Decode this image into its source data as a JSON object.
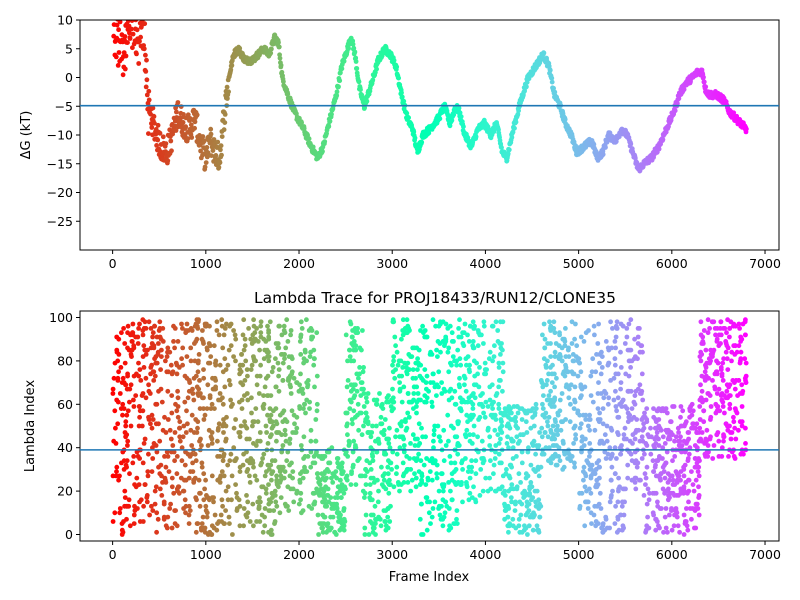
{
  "chart_data": [
    {
      "type": "scatter",
      "title": "",
      "xlabel": "",
      "ylabel": "ΔG (kT)",
      "xlim": [
        -350,
        7150
      ],
      "ylim": [
        -30,
        10
      ],
      "x_ticks": [
        0,
        1000,
        2000,
        3000,
        4000,
        5000,
        6000,
        7000
      ],
      "y_ticks": [
        -25,
        -20,
        -15,
        -10,
        -5,
        0,
        5,
        10
      ],
      "hline": -4.9,
      "hline_color": "#1f77b4",
      "colormap": "rainbow",
      "frame_range": [
        0,
        6800
      ],
      "trace_keypoints": [
        [
          0,
          10
        ],
        [
          20,
          8
        ],
        [
          60,
          6
        ],
        [
          90,
          9
        ],
        [
          120,
          4
        ],
        [
          160,
          8
        ],
        [
          220,
          9
        ],
        [
          280,
          7
        ],
        [
          340,
          8
        ],
        [
          380,
          -5
        ],
        [
          420,
          -7
        ],
        [
          470,
          -10
        ],
        [
          520,
          -12
        ],
        [
          580,
          -13
        ],
        [
          640,
          -10
        ],
        [
          700,
          -6
        ],
        [
          760,
          -8
        ],
        [
          820,
          -9
        ],
        [
          880,
          -7
        ],
        [
          950,
          -12
        ],
        [
          1000,
          -14
        ],
        [
          1050,
          -11
        ],
        [
          1100,
          -13
        ],
        [
          1150,
          -14
        ],
        [
          1200,
          -6
        ],
        [
          1260,
          1
        ],
        [
          1300,
          4
        ],
        [
          1350,
          5
        ],
        [
          1420,
          3
        ],
        [
          1500,
          3
        ],
        [
          1560,
          4
        ],
        [
          1620,
          5
        ],
        [
          1680,
          4
        ],
        [
          1740,
          7
        ],
        [
          1780,
          6
        ],
        [
          1820,
          0
        ],
        [
          1880,
          -3
        ],
        [
          1950,
          -6
        ],
        [
          2050,
          -9
        ],
        [
          2130,
          -12
        ],
        [
          2200,
          -14
        ],
        [
          2260,
          -12
        ],
        [
          2320,
          -8
        ],
        [
          2400,
          -3
        ],
        [
          2460,
          2
        ],
        [
          2520,
          5
        ],
        [
          2560,
          7
        ],
        [
          2600,
          4
        ],
        [
          2650,
          -2
        ],
        [
          2700,
          -5
        ],
        [
          2780,
          -1
        ],
        [
          2850,
          3
        ],
        [
          2920,
          5
        ],
        [
          2980,
          4
        ],
        [
          3040,
          2
        ],
        [
          3100,
          -3
        ],
        [
          3160,
          -7
        ],
        [
          3220,
          -9
        ],
        [
          3270,
          -13
        ],
        [
          3330,
          -10
        ],
        [
          3400,
          -9
        ],
        [
          3500,
          -7
        ],
        [
          3560,
          -5
        ],
        [
          3620,
          -8
        ],
        [
          3680,
          -5
        ],
        [
          3720,
          -6
        ],
        [
          3780,
          -10
        ],
        [
          3850,
          -12
        ],
        [
          3920,
          -9
        ],
        [
          3990,
          -8
        ],
        [
          4060,
          -10
        ],
        [
          4120,
          -8
        ],
        [
          4180,
          -13
        ],
        [
          4230,
          -14
        ],
        [
          4300,
          -9
        ],
        [
          4380,
          -4
        ],
        [
          4460,
          0
        ],
        [
          4540,
          2
        ],
        [
          4620,
          4
        ],
        [
          4680,
          2
        ],
        [
          4740,
          -3
        ],
        [
          4800,
          -5
        ],
        [
          4860,
          -8
        ],
        [
          4920,
          -10
        ],
        [
          4980,
          -13
        ],
        [
          5060,
          -12
        ],
        [
          5140,
          -11
        ],
        [
          5200,
          -14
        ],
        [
          5260,
          -13
        ],
        [
          5320,
          -10
        ],
        [
          5400,
          -11
        ],
        [
          5460,
          -9
        ],
        [
          5520,
          -10
        ],
        [
          5580,
          -13
        ],
        [
          5640,
          -16
        ],
        [
          5700,
          -15
        ],
        [
          5780,
          -14
        ],
        [
          5860,
          -12
        ],
        [
          5940,
          -9
        ],
        [
          6020,
          -6
        ],
        [
          6080,
          -3
        ],
        [
          6150,
          -1
        ],
        [
          6220,
          0
        ],
        [
          6280,
          1
        ],
        [
          6330,
          1
        ],
        [
          6360,
          -2
        ],
        [
          6400,
          -3
        ],
        [
          6480,
          -3
        ],
        [
          6560,
          -4
        ],
        [
          6620,
          -6
        ],
        [
          6680,
          -7
        ],
        [
          6740,
          -8
        ],
        [
          6800,
          -9
        ]
      ]
    },
    {
      "type": "scatter",
      "title": "Lambda Trace for PROJ18433/RUN12/CLONE35",
      "xlabel": "Frame Index",
      "ylabel": "Lambda Index",
      "xlim": [
        -350,
        7150
      ],
      "ylim": [
        -3,
        103
      ],
      "x_ticks": [
        0,
        1000,
        2000,
        3000,
        4000,
        5000,
        6000,
        7000
      ],
      "y_ticks": [
        0,
        20,
        40,
        60,
        80,
        100
      ],
      "hline": 39,
      "hline_color": "#1f77b4",
      "colormap": "rainbow",
      "frame_range": [
        0,
        6800
      ],
      "lambda_range": [
        0,
        99
      ],
      "segments": [
        {
          "x": [
            0,
            1750
          ],
          "y": [
            0,
            99
          ]
        },
        {
          "x": [
            1750,
            2200
          ],
          "y": [
            10,
            99
          ]
        },
        {
          "x": [
            2200,
            2500
          ],
          "y": [
            0,
            40
          ]
        },
        {
          "x": [
            2500,
            2700
          ],
          "y": [
            20,
            99
          ]
        },
        {
          "x": [
            2700,
            3000
          ],
          "y": [
            0,
            65
          ]
        },
        {
          "x": [
            3000,
            3300
          ],
          "y": [
            20,
            99
          ]
        },
        {
          "x": [
            3300,
            3700
          ],
          "y": [
            0,
            99
          ]
        },
        {
          "x": [
            3700,
            4200
          ],
          "y": [
            15,
            99
          ]
        },
        {
          "x": [
            4200,
            4600
          ],
          "y": [
            0,
            60
          ]
        },
        {
          "x": [
            4600,
            5000
          ],
          "y": [
            30,
            99
          ]
        },
        {
          "x": [
            5000,
            5500
          ],
          "y": [
            0,
            99
          ]
        },
        {
          "x": [
            5500,
            5700
          ],
          "y": [
            20,
            99
          ]
        },
        {
          "x": [
            5700,
            6300
          ],
          "y": [
            0,
            60
          ]
        },
        {
          "x": [
            6300,
            6800
          ],
          "y": [
            35,
            99
          ]
        }
      ]
    }
  ]
}
